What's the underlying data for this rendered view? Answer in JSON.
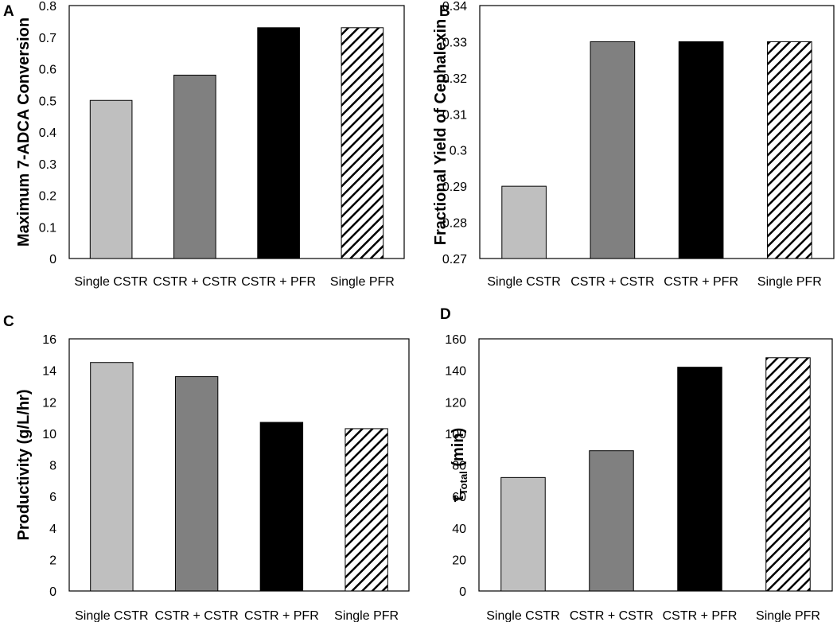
{
  "figure": {
    "colors": {
      "single_cstr": "#bfbfbf",
      "cstr_cstr": "#808080",
      "cstr_pfr": "#000000",
      "single_pfr_hatch": "#000000",
      "frame": "#000000"
    }
  },
  "chart_data": [
    {
      "panel": "A",
      "type": "bar",
      "ylabel": "Maximum 7-ADCA Conversion",
      "categories": [
        "Single CSTR",
        "CSTR + CSTR",
        "CSTR + PFR",
        "Single PFR"
      ],
      "values": [
        0.5,
        0.58,
        0.73,
        0.73
      ],
      "ylim": [
        0,
        0.8
      ],
      "yticks": [
        "0",
        "0.1",
        "0.2",
        "0.3",
        "0.4",
        "0.5",
        "0.6",
        "0.7",
        "0.8"
      ],
      "bar_styles": [
        "light-gray",
        "gray",
        "black",
        "hatched"
      ],
      "grid": false
    },
    {
      "panel": "B",
      "type": "bar",
      "ylabel": "Fractional Yield of Cephalexin",
      "categories": [
        "Single CSTR",
        "CSTR + CSTR",
        "CSTR + PFR",
        "Single PFR"
      ],
      "values": [
        0.29,
        0.33,
        0.33,
        0.33
      ],
      "ylim": [
        0.27,
        0.34
      ],
      "yticks": [
        "0.27",
        "0.28",
        "0.29",
        "0.3",
        "0.31",
        "0.32",
        "0.33",
        "0.34"
      ],
      "bar_styles": [
        "light-gray",
        "gray",
        "black",
        "hatched"
      ],
      "grid": false
    },
    {
      "panel": "C",
      "type": "bar",
      "ylabel": "Productivity (g/L/hr)",
      "categories": [
        "Single CSTR",
        "CSTR + CSTR",
        "CSTR + PFR",
        "Single PFR"
      ],
      "values": [
        14.5,
        13.6,
        10.7,
        10.3
      ],
      "ylim": [
        0,
        16
      ],
      "yticks": [
        "0",
        "2",
        "4",
        "6",
        "8",
        "10",
        "12",
        "14",
        "16"
      ],
      "bar_styles": [
        "light-gray",
        "gray",
        "black",
        "hatched"
      ],
      "grid": false
    },
    {
      "panel": "D",
      "type": "bar",
      "ylabel": "τ",
      "ylabel_sub": "Total",
      "ylabel_suffix": " (min)",
      "categories": [
        "Single CSTR",
        "CSTR + CSTR",
        "CSTR + PFR",
        "Single PFR"
      ],
      "values": [
        72,
        89,
        142,
        148
      ],
      "ylim": [
        0,
        160
      ],
      "yticks": [
        "0",
        "20",
        "40",
        "60",
        "80",
        "100",
        "120",
        "140",
        "160"
      ],
      "bar_styles": [
        "light-gray",
        "gray",
        "black",
        "hatched"
      ],
      "grid": false
    }
  ]
}
